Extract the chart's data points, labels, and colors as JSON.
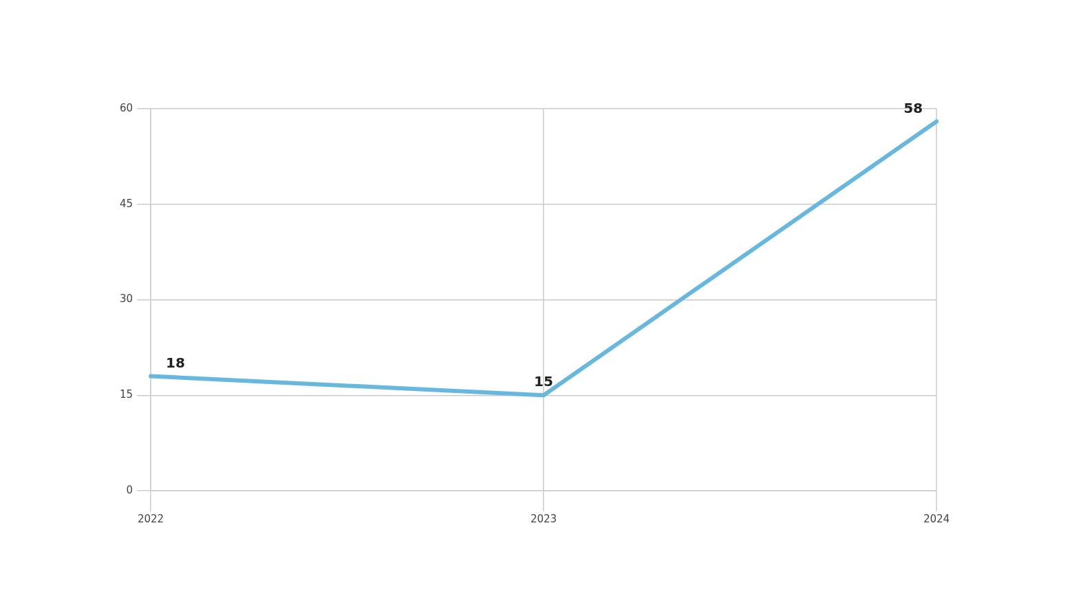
{
  "chart_data": {
    "type": "line",
    "categories": [
      "2022",
      "2023",
      "2024"
    ],
    "values": [
      18,
      15,
      58
    ],
    "color": "#68b7dc",
    "ylim": [
      0,
      60
    ],
    "yticks": [
      0,
      15,
      30,
      45,
      60
    ],
    "grid": true,
    "data_labels": true,
    "marker": "none",
    "line_style": "solid"
  }
}
